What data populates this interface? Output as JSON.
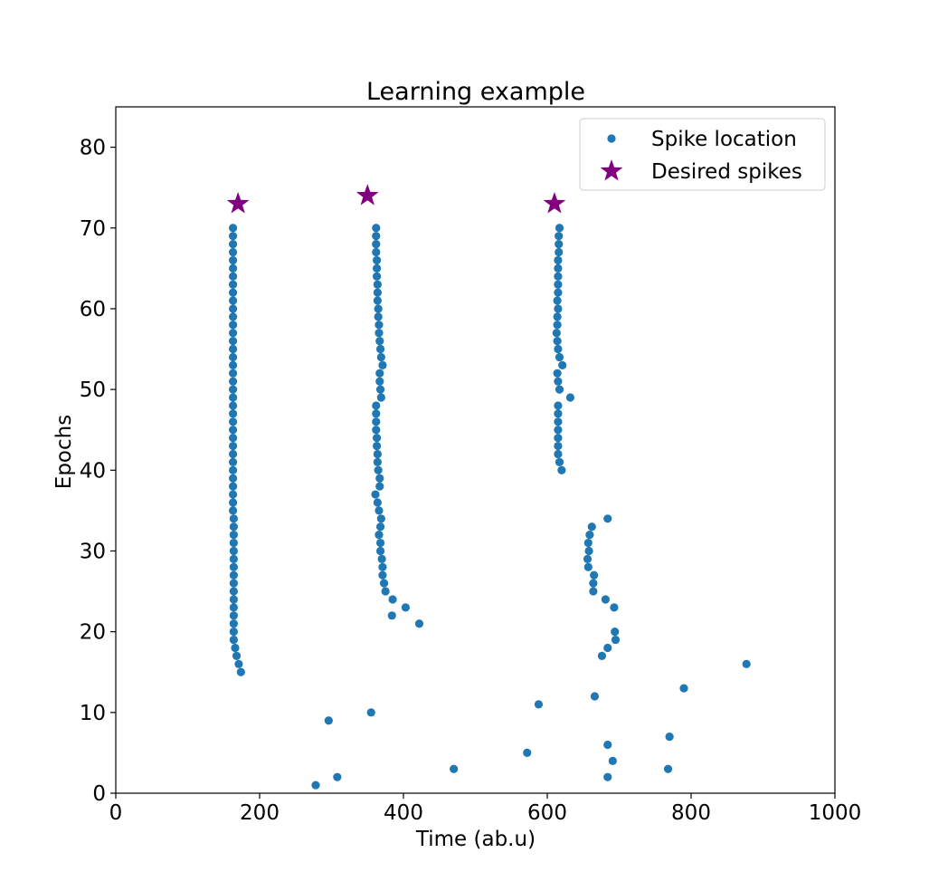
{
  "chart_data": {
    "type": "scatter",
    "title": "Learning example",
    "xlabel": "Time (ab.u)",
    "ylabel": "Epochs",
    "xlim": [
      0,
      1000
    ],
    "ylim": [
      0,
      85
    ],
    "xticks": [
      0,
      200,
      400,
      600,
      800,
      1000
    ],
    "yticks": [
      0,
      10,
      20,
      30,
      40,
      50,
      60,
      70,
      80
    ],
    "grid": false,
    "legend_position": "top-right",
    "series": [
      {
        "name": "Spike location",
        "marker": "circle",
        "color": "#1f77b4",
        "points": [
          [
            163,
            70
          ],
          [
            163,
            69
          ],
          [
            163,
            68
          ],
          [
            163,
            67
          ],
          [
            163,
            66
          ],
          [
            163,
            65
          ],
          [
            163,
            64
          ],
          [
            163,
            63
          ],
          [
            163,
            62
          ],
          [
            163,
            61
          ],
          [
            163,
            60
          ],
          [
            163,
            59
          ],
          [
            163,
            58
          ],
          [
            163,
            57
          ],
          [
            163,
            56
          ],
          [
            163,
            55
          ],
          [
            163,
            54
          ],
          [
            163,
            53
          ],
          [
            163,
            52
          ],
          [
            163,
            51
          ],
          [
            163,
            50
          ],
          [
            163,
            49
          ],
          [
            163,
            48
          ],
          [
            163,
            47
          ],
          [
            163,
            46
          ],
          [
            163,
            45
          ],
          [
            163,
            44
          ],
          [
            163,
            43
          ],
          [
            163,
            42
          ],
          [
            163,
            41
          ],
          [
            163,
            40
          ],
          [
            163,
            39
          ],
          [
            163,
            38
          ],
          [
            163,
            37
          ],
          [
            163,
            36
          ],
          [
            163,
            35
          ],
          [
            164,
            34
          ],
          [
            164,
            33
          ],
          [
            164,
            32
          ],
          [
            164,
            31
          ],
          [
            164,
            30
          ],
          [
            164,
            29
          ],
          [
            164,
            28
          ],
          [
            164,
            27
          ],
          [
            164,
            26
          ],
          [
            164,
            25
          ],
          [
            164,
            24
          ],
          [
            164,
            23
          ],
          [
            164,
            22
          ],
          [
            164,
            21
          ],
          [
            164,
            20
          ],
          [
            164,
            19
          ],
          [
            166,
            18
          ],
          [
            168,
            17
          ],
          [
            171,
            16
          ],
          [
            174,
            15
          ],
          [
            362,
            70
          ],
          [
            362,
            69
          ],
          [
            362,
            68
          ],
          [
            362,
            67
          ],
          [
            363,
            66
          ],
          [
            363,
            65
          ],
          [
            363,
            64
          ],
          [
            364,
            63
          ],
          [
            364,
            62
          ],
          [
            364,
            61
          ],
          [
            365,
            60
          ],
          [
            365,
            59
          ],
          [
            366,
            58
          ],
          [
            366,
            57
          ],
          [
            367,
            56
          ],
          [
            368,
            55
          ],
          [
            369,
            54
          ],
          [
            371,
            53
          ],
          [
            367,
            52
          ],
          [
            367,
            51
          ],
          [
            368,
            50
          ],
          [
            369,
            49
          ],
          [
            362,
            48
          ],
          [
            362,
            47
          ],
          [
            362,
            46
          ],
          [
            362,
            45
          ],
          [
            363,
            44
          ],
          [
            363,
            43
          ],
          [
            364,
            42
          ],
          [
            364,
            41
          ],
          [
            365,
            40
          ],
          [
            367,
            39
          ],
          [
            367,
            38
          ],
          [
            361,
            37
          ],
          [
            364,
            36
          ],
          [
            366,
            35
          ],
          [
            369,
            34
          ],
          [
            368,
            33
          ],
          [
            366,
            32
          ],
          [
            368,
            31
          ],
          [
            368,
            30
          ],
          [
            370,
            29
          ],
          [
            371,
            28
          ],
          [
            371,
            27
          ],
          [
            373,
            26
          ],
          [
            375,
            25
          ],
          [
            385,
            24
          ],
          [
            403,
            23
          ],
          [
            384,
            22
          ],
          [
            422,
            21
          ],
          [
            617,
            70
          ],
          [
            616,
            69
          ],
          [
            616,
            68
          ],
          [
            616,
            67
          ],
          [
            615,
            66
          ],
          [
            615,
            65
          ],
          [
            615,
            64
          ],
          [
            615,
            63
          ],
          [
            615,
            62
          ],
          [
            614,
            61
          ],
          [
            615,
            60
          ],
          [
            614,
            59
          ],
          [
            614,
            58
          ],
          [
            613,
            57
          ],
          [
            614,
            56
          ],
          [
            615,
            55
          ],
          [
            617,
            54
          ],
          [
            621,
            53
          ],
          [
            614,
            52
          ],
          [
            615,
            51
          ],
          [
            617,
            50
          ],
          [
            632,
            49
          ],
          [
            615,
            48
          ],
          [
            615,
            47
          ],
          [
            615,
            46
          ],
          [
            615,
            45
          ],
          [
            615,
            44
          ],
          [
            615,
            43
          ],
          [
            615,
            42
          ],
          [
            617,
            41
          ],
          [
            620,
            40
          ],
          [
            684,
            34
          ],
          [
            662,
            33
          ],
          [
            659,
            32
          ],
          [
            657,
            31
          ],
          [
            658,
            30
          ],
          [
            656,
            29
          ],
          [
            657,
            28
          ],
          [
            665,
            27
          ],
          [
            664,
            26
          ],
          [
            664,
            25
          ],
          [
            681,
            24
          ],
          [
            693,
            23
          ],
          [
            694,
            20
          ],
          [
            695,
            19
          ],
          [
            684,
            18
          ],
          [
            676,
            17
          ],
          [
            877,
            16
          ],
          [
            790,
            13
          ],
          [
            666,
            12
          ],
          [
            588,
            11
          ],
          [
            355,
            10
          ],
          [
            296,
            9
          ],
          [
            770,
            7
          ],
          [
            684,
            6
          ],
          [
            572,
            5
          ],
          [
            691,
            4
          ],
          [
            470,
            3
          ],
          [
            768,
            3
          ],
          [
            308,
            2
          ],
          [
            684,
            2
          ],
          [
            278,
            1
          ]
        ]
      },
      {
        "name": "Desired spikes",
        "marker": "star",
        "color": "#800080",
        "points": [
          [
            170,
            73
          ],
          [
            350,
            74
          ],
          [
            610,
            73
          ]
        ]
      }
    ]
  }
}
